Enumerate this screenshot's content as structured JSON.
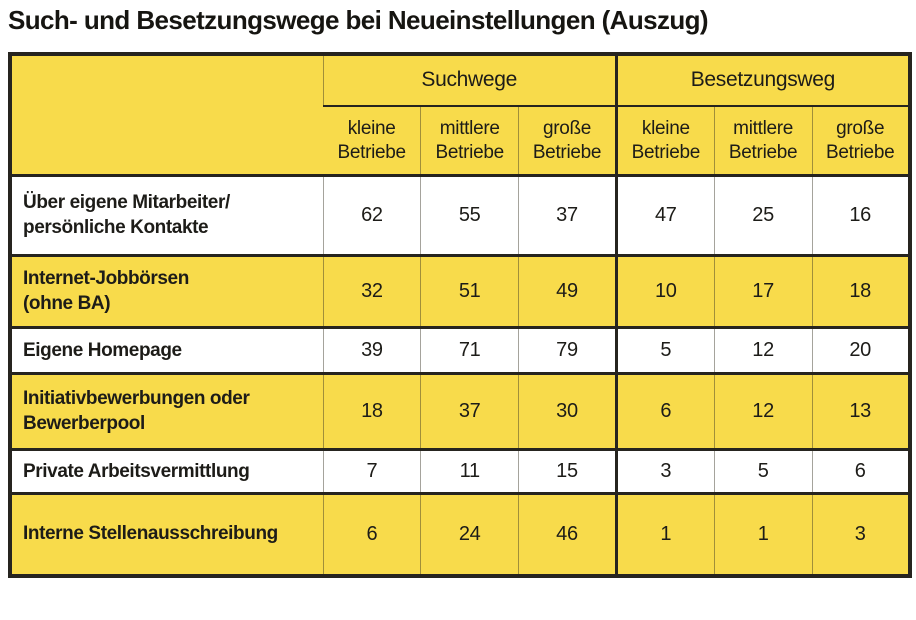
{
  "title": "Such- und Besetzungswege bei Neueinstellungen (Auszug)",
  "colors": {
    "yellow": "#F8DB4B",
    "ink": "#26241f"
  },
  "table": {
    "groups": [
      "Suchwege",
      "Besetzungsweg"
    ],
    "subheaders": [
      "kleine\nBetriebe",
      "mittlere\nBetriebe",
      "große\nBetriebe",
      "kleine\nBetriebe",
      "mittlere\nBetriebe",
      "große\nBetriebe"
    ],
    "row_labels": [
      "Über eigene Mitarbeiter/\npersönliche Kontakte",
      "Internet-Jobbörsen\n(ohne BA)",
      "Eigene Homepage",
      "Initiativbewerbungen oder\nBewerberpool",
      "Private Arbeitsvermittlung",
      "Interne Stellenausschreibung"
    ]
  },
  "chart_data": {
    "type": "table",
    "title": "Such- und Besetzungswege bei Neueinstellungen (Auszug)",
    "column_groups": [
      {
        "label": "Suchwege",
        "columns": [
          "kleine Betriebe",
          "mittlere Betriebe",
          "große Betriebe"
        ]
      },
      {
        "label": "Besetzungsweg",
        "columns": [
          "kleine Betriebe",
          "mittlere Betriebe",
          "große Betriebe"
        ]
      }
    ],
    "columns": [
      "Suchwege – kleine Betriebe",
      "Suchwege – mittlere Betriebe",
      "Suchwege – große Betriebe",
      "Besetzungsweg – kleine Betriebe",
      "Besetzungsweg – mittlere Betriebe",
      "Besetzungsweg – große Betriebe"
    ],
    "rows": [
      {
        "label": "Über eigene Mitarbeiter/ persönliche Kontakte",
        "values": [
          62,
          55,
          37,
          47,
          25,
          16
        ]
      },
      {
        "label": "Internet-Jobbörsen (ohne BA)",
        "values": [
          32,
          51,
          49,
          10,
          17,
          18
        ]
      },
      {
        "label": "Eigene Homepage",
        "values": [
          39,
          71,
          79,
          5,
          12,
          20
        ]
      },
      {
        "label": "Initiativbewerbungen oder Bewerberpool",
        "values": [
          18,
          37,
          30,
          6,
          12,
          13
        ]
      },
      {
        "label": "Private Arbeitsvermittlung",
        "values": [
          7,
          11,
          15,
          3,
          5,
          6
        ]
      },
      {
        "label": "Interne Stellenausschreibung",
        "values": [
          6,
          24,
          46,
          1,
          1,
          3
        ]
      }
    ]
  }
}
